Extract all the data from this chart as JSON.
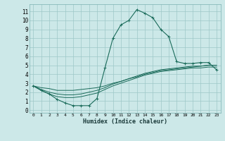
{
  "xlabel": "Humidex (Indice chaleur)",
  "background_color": "#cce8e8",
  "grid_color": "#9dc8c8",
  "line_color": "#1a6b5a",
  "xlim": [
    -0.5,
    23.5
  ],
  "ylim": [
    -0.3,
    11.8
  ],
  "xticks": [
    0,
    1,
    2,
    3,
    4,
    5,
    6,
    7,
    8,
    9,
    10,
    11,
    12,
    13,
    14,
    15,
    16,
    17,
    18,
    19,
    20,
    21,
    22,
    23
  ],
  "yticks": [
    0,
    1,
    2,
    3,
    4,
    5,
    6,
    7,
    8,
    9,
    10,
    11
  ],
  "series": [
    {
      "x": [
        0,
        1,
        2,
        3,
        4,
        5,
        6,
        7,
        8,
        9,
        10,
        11,
        12,
        13,
        14,
        15,
        16,
        17,
        18,
        19,
        20,
        21,
        22,
        23
      ],
      "y": [
        2.7,
        2.2,
        1.8,
        1.2,
        0.8,
        0.5,
        0.5,
        0.5,
        1.3,
        4.7,
        8.0,
        9.5,
        10.0,
        11.2,
        10.8,
        10.3,
        9.0,
        8.2,
        5.4,
        5.2,
        5.2,
        5.3,
        5.3,
        4.5
      ],
      "marker": "+"
    },
    {
      "x": [
        0,
        1,
        2,
        3,
        4,
        5,
        6,
        7,
        8,
        9,
        10,
        11,
        12,
        13,
        14,
        15,
        16,
        17,
        18,
        19,
        20,
        21,
        22,
        23
      ],
      "y": [
        2.7,
        2.5,
        2.4,
        2.2,
        2.2,
        2.2,
        2.3,
        2.4,
        2.5,
        2.7,
        3.0,
        3.2,
        3.5,
        3.7,
        4.0,
        4.2,
        4.4,
        4.5,
        4.6,
        4.7,
        4.8,
        4.9,
        5.0,
        5.0
      ],
      "marker": null
    },
    {
      "x": [
        0,
        1,
        2,
        3,
        4,
        5,
        6,
        7,
        8,
        9,
        10,
        11,
        12,
        13,
        14,
        15,
        16,
        17,
        18,
        19,
        20,
        21,
        22,
        23
      ],
      "y": [
        2.7,
        2.3,
        2.0,
        1.8,
        1.7,
        1.7,
        1.8,
        2.0,
        2.2,
        2.5,
        2.9,
        3.2,
        3.5,
        3.8,
        4.1,
        4.3,
        4.5,
        4.6,
        4.7,
        4.8,
        4.9,
        4.9,
        5.0,
        5.0
      ],
      "marker": null
    },
    {
      "x": [
        0,
        1,
        2,
        3,
        4,
        5,
        6,
        7,
        8,
        9,
        10,
        11,
        12,
        13,
        14,
        15,
        16,
        17,
        18,
        19,
        20,
        21,
        22,
        23
      ],
      "y": [
        2.7,
        2.2,
        1.8,
        1.5,
        1.4,
        1.4,
        1.5,
        1.7,
        1.9,
        2.3,
        2.7,
        3.0,
        3.3,
        3.6,
        3.9,
        4.1,
        4.3,
        4.4,
        4.5,
        4.6,
        4.7,
        4.7,
        4.8,
        4.8
      ],
      "marker": null
    }
  ]
}
